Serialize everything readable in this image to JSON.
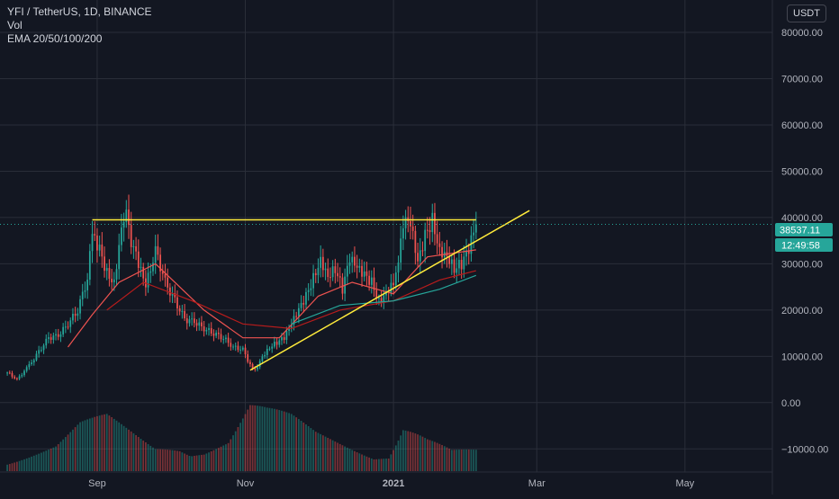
{
  "legend": {
    "symbol": "YFI / TetherUS, 1D, BINANCE",
    "vol": "Vol",
    "ema": "EMA 20/50/100/200"
  },
  "currency_button": "USDT",
  "price_label": "38537.11",
  "countdown_label": "12:49:58",
  "colors": {
    "background": "#131722",
    "grid": "#2a2e39",
    "up": "#26a69a",
    "down": "#ef5350",
    "trendline": "#ffeb3b",
    "ema20": "#ef5350",
    "ema50": "#b71c1c",
    "ema100": "#26a69a",
    "price_line": "#26a69a"
  },
  "chart_data": {
    "type": "candlestick",
    "title": "",
    "ylim": [
      -15000,
      87000
    ],
    "y_ticks": [
      80000,
      70000,
      60000,
      50000,
      40000,
      30000,
      20000,
      10000,
      0,
      -10000
    ],
    "y_tick_labels": [
      "80000.00",
      "70000.00",
      "60000.00",
      "50000.00",
      "40000.00",
      "30000.00",
      "20000.00",
      "10000.00",
      "0.00",
      "−10000.00"
    ],
    "x_ticks": [
      "Sep",
      "Nov",
      "2021",
      "Mar",
      "May"
    ],
    "x_tick_dates": [
      "2020-09-01",
      "2020-11-01",
      "2021-01-01",
      "2021-03-01",
      "2021-05-01"
    ],
    "x_range": [
      "2020-07-23",
      "2021-06-06"
    ],
    "grid": true,
    "last_price": 38537.11,
    "close_series": {
      "dates": [
        "2020-07-26",
        "2020-07-30",
        "2020-08-04",
        "2020-08-08",
        "2020-08-12",
        "2020-08-16",
        "2020-08-20",
        "2020-08-24",
        "2020-08-28",
        "2020-08-30",
        "2020-09-02",
        "2020-09-05",
        "2020-09-08",
        "2020-09-11",
        "2020-09-13",
        "2020-09-15",
        "2020-09-18",
        "2020-09-21",
        "2020-09-25",
        "2020-09-29",
        "2020-10-03",
        "2020-10-07",
        "2020-10-11",
        "2020-10-15",
        "2020-10-19",
        "2020-10-23",
        "2020-10-27",
        "2020-10-31",
        "2020-11-03",
        "2020-11-05",
        "2020-11-08",
        "2020-11-11",
        "2020-11-14",
        "2020-11-17",
        "2020-11-20",
        "2020-11-23",
        "2020-11-26",
        "2020-11-29",
        "2020-12-02",
        "2020-12-05",
        "2020-12-08",
        "2020-12-11",
        "2020-12-14",
        "2020-12-17",
        "2020-12-20",
        "2020-12-23",
        "2020-12-26",
        "2020-12-29",
        "2021-01-01",
        "2021-01-03",
        "2021-01-05",
        "2021-01-08",
        "2021-01-11",
        "2021-01-14",
        "2021-01-17",
        "2021-01-20",
        "2021-01-23",
        "2021-01-26",
        "2021-01-29",
        "2021-02-01",
        "2021-02-04"
      ],
      "values": [
        6500,
        5000,
        8000,
        11000,
        14000,
        14500,
        17000,
        20000,
        27000,
        36000,
        33000,
        28000,
        26000,
        38000,
        43000,
        35000,
        30000,
        25000,
        33000,
        26000,
        22000,
        18000,
        17500,
        16000,
        15000,
        14000,
        12000,
        11500,
        8000,
        7000,
        10000,
        12000,
        13000,
        14000,
        17000,
        20000,
        23000,
        27000,
        31000,
        27500,
        29000,
        24500,
        31000,
        29000,
        27500,
        26000,
        22000,
        24000,
        26000,
        31500,
        39000,
        38500,
        30000,
        36000,
        39500,
        33000,
        32000,
        29000,
        30000,
        33000,
        38537.11
      ]
    },
    "ema_series": [
      {
        "name": "EMA 20",
        "dates": [
          "2020-08-20",
          "2020-08-30",
          "2020-09-10",
          "2020-09-25",
          "2020-10-15",
          "2020-10-31",
          "2020-11-15",
          "2020-12-01",
          "2020-12-15",
          "2021-01-01",
          "2021-01-15",
          "2021-02-04"
        ],
        "values": [
          12000,
          19000,
          26000,
          30000,
          20000,
          14000,
          14000,
          23000,
          26000,
          23500,
          31500,
          33000
        ]
      },
      {
        "name": "EMA 50",
        "dates": [
          "2020-09-05",
          "2020-09-20",
          "2020-10-10",
          "2020-10-31",
          "2020-11-20",
          "2020-12-10",
          "2021-01-01",
          "2021-01-20",
          "2021-02-04"
        ],
        "values": [
          20000,
          26000,
          22000,
          17000,
          16000,
          20000,
          22000,
          26500,
          28500
        ]
      },
      {
        "name": "EMA 100",
        "dates": [
          "2020-11-20",
          "2020-12-10",
          "2021-01-01",
          "2021-01-20",
          "2021-02-04"
        ],
        "values": [
          17000,
          21000,
          22000,
          24500,
          27500
        ]
      }
    ],
    "trendlines": [
      {
        "name": "resistance",
        "from": {
          "date": "2020-08-30",
          "value": 39500
        },
        "to": {
          "date": "2021-02-04",
          "value": 39500
        }
      },
      {
        "name": "support",
        "from": {
          "date": "2020-11-03",
          "value": 7000
        },
        "to": {
          "date": "2021-02-26",
          "value": 41500
        }
      }
    ],
    "volume": {
      "dates": [
        "2020-07-26",
        "2020-08-05",
        "2020-08-15",
        "2020-08-25",
        "2020-09-05",
        "2020-09-15",
        "2020-09-25",
        "2020-10-05",
        "2020-10-15",
        "2020-10-25",
        "2020-11-03",
        "2020-11-10",
        "2020-11-20",
        "2020-11-30",
        "2020-12-10",
        "2020-12-20",
        "2020-12-30",
        "2021-01-05",
        "2021-01-15",
        "2021-01-25",
        "2021-02-04"
      ],
      "values": [
        1.0,
        1.5,
        2.0,
        3.5,
        4.0,
        3.0,
        2.0,
        2.5,
        2.0,
        2.5,
        5.0,
        4.5,
        4.0,
        3.0,
        2.5,
        2.0,
        1.5,
        4.0,
        2.5,
        1.5,
        1.5
      ]
    }
  }
}
